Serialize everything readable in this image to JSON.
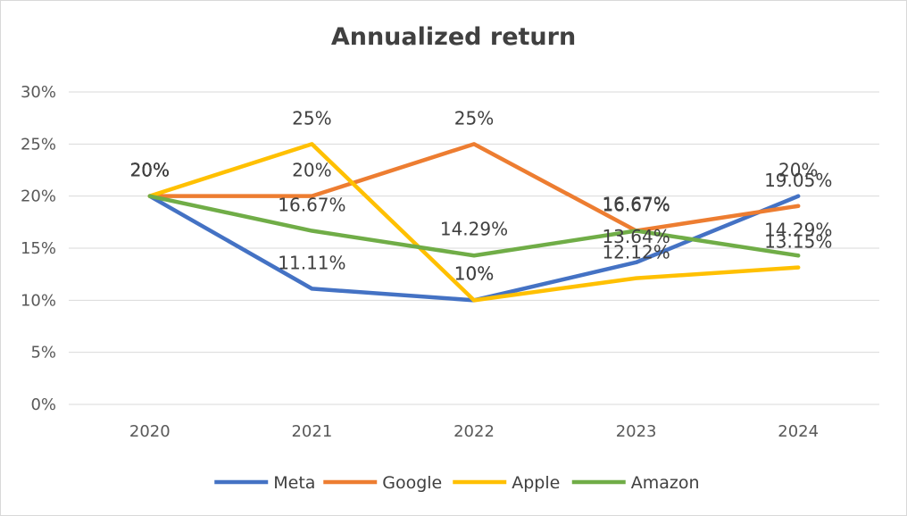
{
  "chart_data": {
    "type": "line",
    "title": "Annualized return",
    "xlabel": "",
    "ylabel": "",
    "categories": [
      "2020",
      "2021",
      "2022",
      "2023",
      "2024"
    ],
    "ylim": [
      0,
      30
    ],
    "ytick_values": [
      0,
      5,
      10,
      15,
      20,
      25,
      30
    ],
    "ytick_labels": [
      "0%",
      "5%",
      "10%",
      "15%",
      "20%",
      "25%",
      "30%"
    ],
    "grid": true,
    "legend_position": "bottom",
    "series": [
      {
        "name": "Meta",
        "color": "#4472c4",
        "values": [
          20,
          11.11,
          10,
          13.64,
          20
        ],
        "labels": [
          "20%",
          "11.11%",
          "10%",
          "13.64%",
          "20%"
        ]
      },
      {
        "name": "Google",
        "color": "#ed7d31",
        "values": [
          20,
          20,
          25,
          16.67,
          19.05
        ],
        "labels": [
          "20%",
          "20%",
          "25%",
          "16.67%",
          "19.05%"
        ]
      },
      {
        "name": "Apple",
        "color": "#ffc000",
        "values": [
          20,
          25,
          10,
          12.12,
          13.15
        ],
        "labels": [
          "20%",
          "25%",
          "10%",
          "12.12%",
          "13.15%"
        ]
      },
      {
        "name": "Amazon",
        "color": "#70ad47",
        "values": [
          20,
          16.67,
          14.29,
          16.67,
          14.29
        ],
        "labels": [
          "20%",
          "16.67%",
          "14.29%",
          "16.67%",
          "14.29%"
        ]
      }
    ]
  }
}
